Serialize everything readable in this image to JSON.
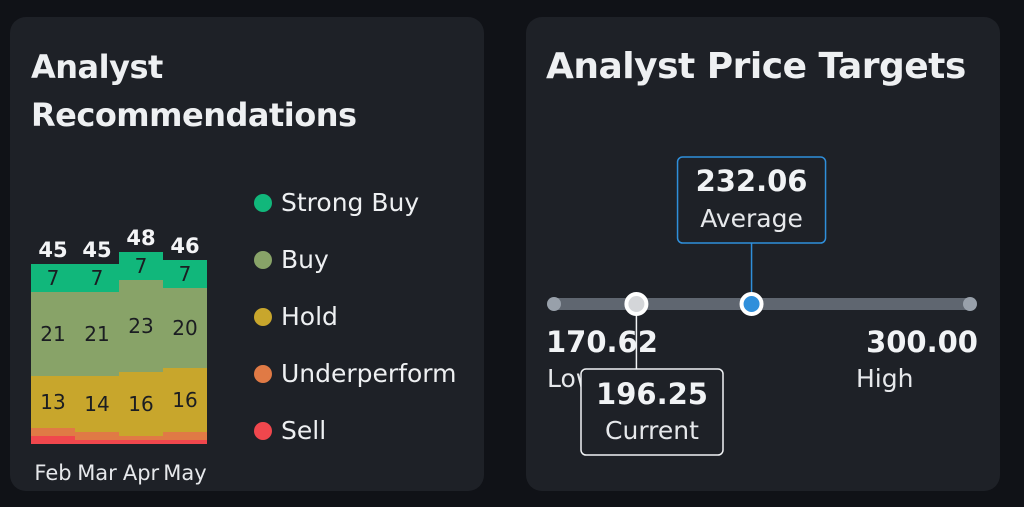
{
  "recommendations": {
    "title": "Analyst Recommendations",
    "legend": [
      {
        "label": "Strong Buy",
        "color": "#11b77b",
        "icon": "dot"
      },
      {
        "label": "Buy",
        "color": "#88a368",
        "icon": "dot"
      },
      {
        "label": "Hold",
        "color": "#c8a62c",
        "icon": "dot"
      },
      {
        "label": "Underperform",
        "color": "#e07a45",
        "icon": "dot"
      },
      {
        "label": "Sell",
        "color": "#f0474d",
        "icon": "dot"
      }
    ]
  },
  "chart_data": {
    "type": "bar",
    "stacked": true,
    "categories": [
      "Feb",
      "Mar",
      "Apr",
      "May"
    ],
    "totals": [
      45,
      45,
      48,
      46
    ],
    "series": [
      {
        "name": "Strong Buy",
        "values": [
          7,
          7,
          7,
          7
        ],
        "color": "#11b77b"
      },
      {
        "name": "Buy",
        "values": [
          21,
          21,
          23,
          20
        ],
        "color": "#88a368"
      },
      {
        "name": "Hold",
        "values": [
          13,
          14,
          16,
          16
        ],
        "color": "#c8a62c"
      },
      {
        "name": "Underperform",
        "values": [
          2,
          2,
          1,
          2
        ],
        "color": "#e07a45"
      },
      {
        "name": "Sell",
        "values": [
          2,
          1,
          1,
          1
        ],
        "color": "#f0474d"
      }
    ],
    "grid": false,
    "legend_position": "right"
  },
  "price_targets": {
    "title": "Analyst Price Targets",
    "low": {
      "value": "170.62",
      "label": "Low"
    },
    "current": {
      "value": "196.25",
      "label": "Current"
    },
    "average": {
      "value": "232.06",
      "label": "Average"
    },
    "high": {
      "value": "300.00",
      "label": "High"
    },
    "range": [
      170.62,
      300.0
    ],
    "current_value": 196.25,
    "average_value": 232.06,
    "colors": {
      "track": "#5f6670",
      "average_dot": "#2f8fdb",
      "average_border": "#2f8fdb",
      "current_border": "#f1f3f5"
    }
  }
}
